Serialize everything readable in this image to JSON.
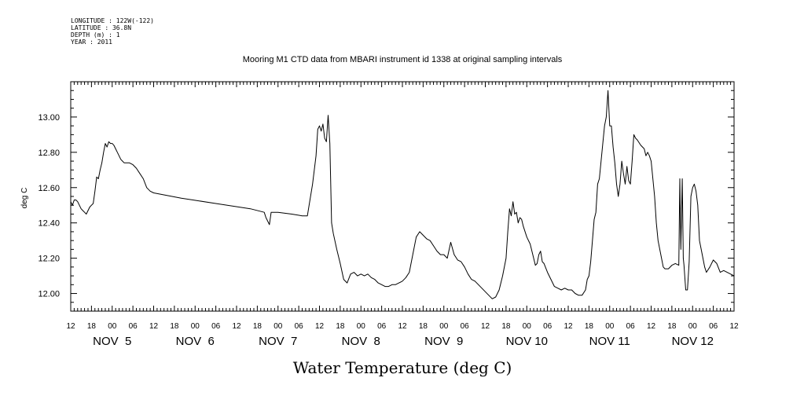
{
  "header": {
    "lines": [
      "LONGITUDE : 122W(-122)",
      "LATITUDE : 36.8N",
      "DEPTH (m) : 1",
      "YEAR : 2011"
    ]
  },
  "chart_data": {
    "type": "line",
    "title": "Mooring M1 CTD data from MBARI instrument id 1338 at original sampling intervals",
    "xlabel": "Water Temperature (deg C)",
    "ylabel": "deg C",
    "x_unit": "hours since Nov 5 00:00 2011",
    "xlim": [
      -12,
      180
    ],
    "ylim": [
      11.9,
      13.2
    ],
    "y_ticks": [
      12.0,
      12.2,
      12.4,
      12.6,
      12.8,
      13.0
    ],
    "y_tick_labels": [
      "12.00",
      "12.20",
      "12.40",
      "12.60",
      "12.80",
      "13.00"
    ],
    "x_hour_labels": [
      "12",
      "18",
      "00",
      "06",
      "12",
      "18",
      "00",
      "06",
      "12",
      "18",
      "00",
      "06",
      "12",
      "18",
      "00",
      "06",
      "12",
      "18",
      "00",
      "06",
      "12",
      "18",
      "00",
      "06",
      "12",
      "18",
      "00",
      "06",
      "12",
      "18",
      "00",
      "06",
      "12"
    ],
    "x_day_labels": [
      {
        "text": "NOV  5",
        "hour": 0
      },
      {
        "text": "NOV  6",
        "hour": 24
      },
      {
        "text": "NOV  7",
        "hour": 48
      },
      {
        "text": "NOV  8",
        "hour": 72
      },
      {
        "text": "NOV  9",
        "hour": 96
      },
      {
        "text": "NOV 10",
        "hour": 120
      },
      {
        "text": "NOV 11",
        "hour": 144
      },
      {
        "text": "NOV 12",
        "hour": 168
      }
    ],
    "grid": false,
    "series": [
      {
        "color": "#000000",
        "points": [
          [
            -12.0,
            12.52
          ],
          [
            -11.5,
            12.5
          ],
          [
            -11.0,
            12.53
          ],
          [
            -10.5,
            12.53
          ],
          [
            -10.0,
            12.52
          ],
          [
            -9.5,
            12.5
          ],
          [
            -9.0,
            12.48
          ],
          [
            -8.5,
            12.47
          ],
          [
            -8.0,
            12.46
          ],
          [
            -7.5,
            12.45
          ],
          [
            -7.0,
            12.47
          ],
          [
            -6.5,
            12.49
          ],
          [
            -6.0,
            12.5
          ],
          [
            -5.5,
            12.51
          ],
          [
            -5.0,
            12.58
          ],
          [
            -4.5,
            12.66
          ],
          [
            -4.0,
            12.65
          ],
          [
            -3.5,
            12.7
          ],
          [
            -3.0,
            12.74
          ],
          [
            -2.5,
            12.8
          ],
          [
            -2.0,
            12.85
          ],
          [
            -1.5,
            12.83
          ],
          [
            -1.0,
            12.86
          ],
          [
            -0.5,
            12.85
          ],
          [
            0.0,
            12.85
          ],
          [
            0.5,
            12.84
          ],
          [
            1.0,
            12.82
          ],
          [
            1.5,
            12.8
          ],
          [
            2.0,
            12.78
          ],
          [
            2.5,
            12.76
          ],
          [
            3.0,
            12.75
          ],
          [
            3.5,
            12.74
          ],
          [
            4.0,
            12.74
          ],
          [
            5.0,
            12.74
          ],
          [
            6.0,
            12.73
          ],
          [
            7.0,
            12.71
          ],
          [
            8.0,
            12.68
          ],
          [
            9.0,
            12.65
          ],
          [
            10.0,
            12.6
          ],
          [
            11.0,
            12.58
          ],
          [
            12.0,
            12.57
          ],
          [
            20.0,
            12.54
          ],
          [
            30.0,
            12.51
          ],
          [
            40.0,
            12.48
          ],
          [
            44.0,
            12.46
          ],
          [
            44.5,
            12.43
          ],
          [
            45.0,
            12.41
          ],
          [
            45.5,
            12.39
          ],
          [
            46.0,
            12.46
          ],
          [
            46.5,
            12.46
          ],
          [
            48.0,
            12.46
          ],
          [
            52.0,
            12.45
          ],
          [
            55.0,
            12.44
          ],
          [
            56.5,
            12.44
          ],
          [
            57.0,
            12.5
          ],
          [
            58.0,
            12.62
          ],
          [
            59.0,
            12.78
          ],
          [
            59.5,
            12.93
          ],
          [
            60.0,
            12.95
          ],
          [
            60.5,
            12.92
          ],
          [
            61.0,
            12.96
          ],
          [
            61.5,
            12.88
          ],
          [
            62.0,
            12.86
          ],
          [
            62.5,
            13.01
          ],
          [
            63.0,
            12.85
          ],
          [
            63.5,
            12.4
          ],
          [
            64.0,
            12.34
          ],
          [
            65.0,
            12.25
          ],
          [
            66.0,
            12.17
          ],
          [
            67.0,
            12.08
          ],
          [
            68.0,
            12.06
          ],
          [
            69.0,
            12.11
          ],
          [
            70.0,
            12.12
          ],
          [
            71.0,
            12.1
          ],
          [
            72.0,
            12.11
          ],
          [
            73.0,
            12.1
          ],
          [
            74.0,
            12.11
          ],
          [
            75.0,
            12.09
          ],
          [
            76.0,
            12.08
          ],
          [
            77.0,
            12.06
          ],
          [
            78.0,
            12.05
          ],
          [
            79.0,
            12.04
          ],
          [
            80.0,
            12.04
          ],
          [
            81.0,
            12.05
          ],
          [
            82.0,
            12.05
          ],
          [
            83.0,
            12.06
          ],
          [
            84.0,
            12.07
          ],
          [
            85.0,
            12.09
          ],
          [
            86.0,
            12.12
          ],
          [
            87.0,
            12.22
          ],
          [
            88.0,
            12.32
          ],
          [
            89.0,
            12.35
          ],
          [
            90.0,
            12.33
          ],
          [
            91.0,
            12.31
          ],
          [
            92.0,
            12.3
          ],
          [
            93.0,
            12.27
          ],
          [
            94.0,
            12.24
          ],
          [
            95.0,
            12.22
          ],
          [
            96.0,
            12.22
          ],
          [
            97.0,
            12.2
          ],
          [
            98.0,
            12.29
          ],
          [
            99.0,
            12.22
          ],
          [
            100.0,
            12.19
          ],
          [
            101.0,
            12.18
          ],
          [
            102.0,
            12.15
          ],
          [
            103.0,
            12.11
          ],
          [
            104.0,
            12.08
          ],
          [
            105.0,
            12.07
          ],
          [
            106.0,
            12.05
          ],
          [
            107.0,
            12.03
          ],
          [
            108.0,
            12.01
          ],
          [
            109.0,
            11.99
          ],
          [
            110.0,
            11.97
          ],
          [
            111.0,
            11.98
          ],
          [
            112.0,
            12.02
          ],
          [
            113.0,
            12.1
          ],
          [
            114.0,
            12.2
          ],
          [
            114.5,
            12.35
          ],
          [
            115.0,
            12.48
          ],
          [
            115.5,
            12.44
          ],
          [
            116.0,
            12.52
          ],
          [
            116.5,
            12.45
          ],
          [
            117.0,
            12.46
          ],
          [
            117.5,
            12.4
          ],
          [
            118.0,
            12.43
          ],
          [
            118.5,
            12.42
          ],
          [
            119.0,
            12.38
          ],
          [
            120.0,
            12.32
          ],
          [
            121.0,
            12.28
          ],
          [
            122.0,
            12.2
          ],
          [
            122.5,
            12.16
          ],
          [
            123.0,
            12.17
          ],
          [
            123.5,
            12.22
          ],
          [
            124.0,
            12.24
          ],
          [
            124.5,
            12.18
          ],
          [
            125.0,
            12.17
          ],
          [
            126.0,
            12.12
          ],
          [
            127.0,
            12.08
          ],
          [
            128.0,
            12.04
          ],
          [
            129.0,
            12.03
          ],
          [
            130.0,
            12.02
          ],
          [
            131.0,
            12.03
          ],
          [
            132.0,
            12.02
          ],
          [
            133.0,
            12.02
          ],
          [
            134.0,
            12.0
          ],
          [
            135.0,
            11.99
          ],
          [
            136.0,
            11.99
          ],
          [
            137.0,
            12.02
          ],
          [
            137.5,
            12.08
          ],
          [
            138.0,
            12.1
          ],
          [
            138.5,
            12.18
          ],
          [
            139.0,
            12.3
          ],
          [
            139.5,
            12.42
          ],
          [
            140.0,
            12.46
          ],
          [
            140.5,
            12.62
          ],
          [
            141.0,
            12.65
          ],
          [
            141.5,
            12.75
          ],
          [
            142.0,
            12.85
          ],
          [
            142.5,
            12.95
          ],
          [
            143.0,
            13.0
          ],
          [
            143.5,
            13.15
          ],
          [
            144.0,
            12.95
          ],
          [
            144.5,
            12.95
          ],
          [
            145.0,
            12.83
          ],
          [
            145.5,
            12.74
          ],
          [
            146.0,
            12.62
          ],
          [
            146.5,
            12.55
          ],
          [
            147.0,
            12.62
          ],
          [
            147.5,
            12.75
          ],
          [
            148.0,
            12.68
          ],
          [
            148.5,
            12.62
          ],
          [
            149.0,
            12.72
          ],
          [
            149.5,
            12.64
          ],
          [
            150.0,
            12.62
          ],
          [
            150.5,
            12.75
          ],
          [
            151.0,
            12.9
          ],
          [
            151.5,
            12.88
          ],
          [
            152.0,
            12.87
          ],
          [
            153.0,
            12.84
          ],
          [
            154.0,
            12.82
          ],
          [
            154.5,
            12.78
          ],
          [
            155.0,
            12.8
          ],
          [
            155.5,
            12.78
          ],
          [
            156.0,
            12.75
          ],
          [
            156.5,
            12.65
          ],
          [
            157.0,
            12.55
          ],
          [
            157.5,
            12.4
          ],
          [
            158.0,
            12.3
          ],
          [
            159.0,
            12.2
          ],
          [
            159.5,
            12.15
          ],
          [
            160.0,
            12.14
          ],
          [
            161.0,
            12.14
          ],
          [
            162.0,
            12.16
          ],
          [
            163.0,
            12.17
          ],
          [
            164.0,
            12.16
          ],
          [
            164.3,
            12.65
          ],
          [
            164.6,
            12.25
          ],
          [
            165.0,
            12.65
          ],
          [
            165.3,
            12.2
          ],
          [
            165.5,
            12.16
          ],
          [
            166.0,
            12.02
          ],
          [
            166.5,
            12.02
          ],
          [
            167.0,
            12.18
          ],
          [
            167.5,
            12.55
          ],
          [
            168.0,
            12.6
          ],
          [
            168.5,
            12.62
          ],
          [
            169.0,
            12.58
          ],
          [
            169.5,
            12.5
          ],
          [
            170.0,
            12.3
          ],
          [
            170.5,
            12.25
          ],
          [
            171.0,
            12.2
          ],
          [
            171.5,
            12.15
          ],
          [
            172.0,
            12.12
          ],
          [
            173.0,
            12.15
          ],
          [
            174.0,
            12.19
          ],
          [
            175.0,
            12.17
          ],
          [
            176.0,
            12.12
          ],
          [
            177.0,
            12.13
          ],
          [
            178.0,
            12.12
          ],
          [
            179.0,
            12.11
          ],
          [
            180.0,
            12.1
          ]
        ]
      }
    ]
  }
}
